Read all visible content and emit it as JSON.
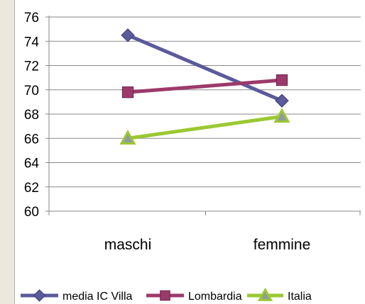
{
  "chart_data": {
    "type": "line",
    "categories": [
      "maschi",
      "femmine"
    ],
    "series": [
      {
        "name": "media IC Villa",
        "values": [
          74.5,
          69.1
        ],
        "color": "#5b5a9c",
        "marker": "diamond"
      },
      {
        "name": "Lombardia",
        "values": [
          69.8,
          70.8
        ],
        "color": "#9c3a6b",
        "marker": "square"
      },
      {
        "name": "Italia",
        "values": [
          66.0,
          67.8
        ],
        "color": "#9bc832",
        "marker": "triangle"
      }
    ],
    "ylim": [
      60,
      76
    ],
    "yticks": [
      "60",
      "62",
      "64",
      "66",
      "68",
      "70",
      "72",
      "74",
      "76"
    ],
    "grid": true,
    "legend_position": "bottom",
    "title": "",
    "xlabel": "",
    "ylabel": ""
  }
}
